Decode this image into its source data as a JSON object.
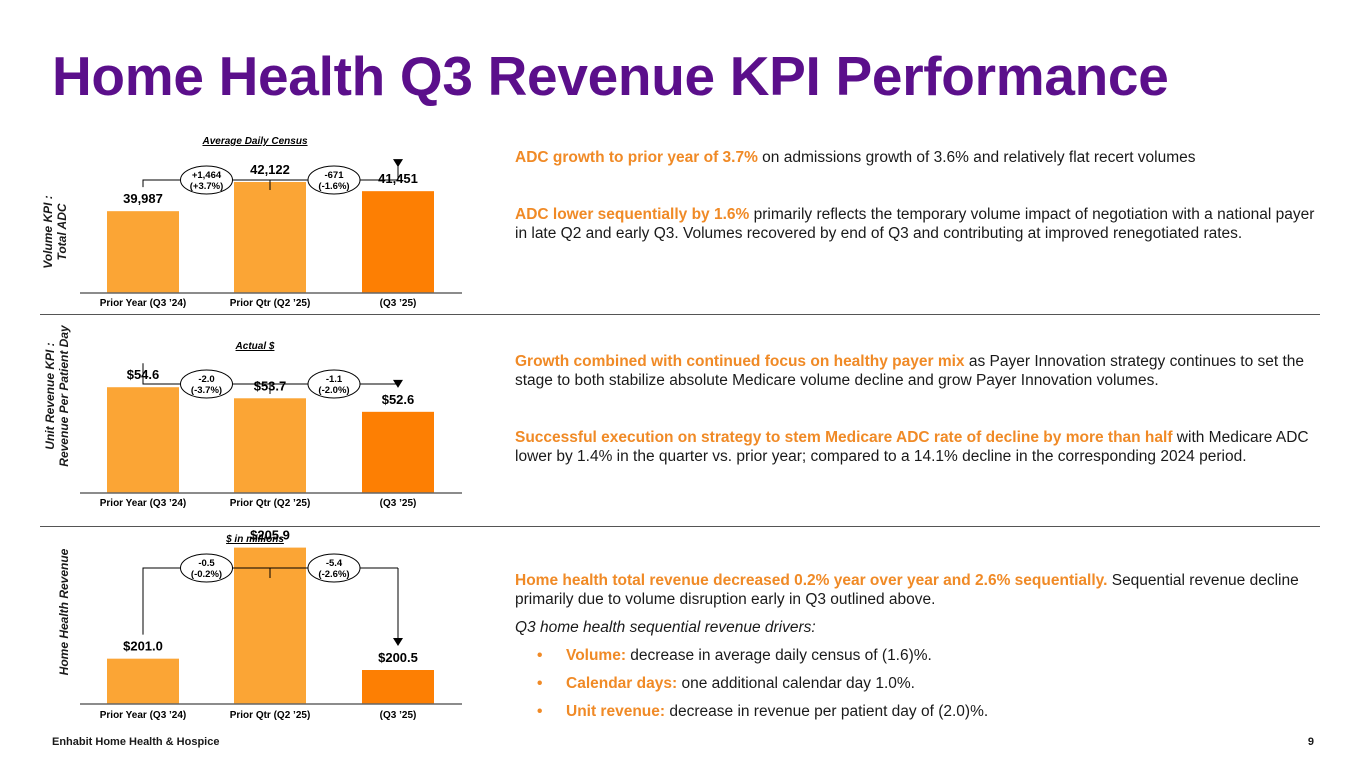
{
  "title": "Home Health Q3 Revenue KPI Performance",
  "colors": {
    "title": "#5b0f8b",
    "bar_light": "#fba535",
    "bar_dark": "#fd7f03",
    "highlight": "#f08a26"
  },
  "chart_data": [
    {
      "type": "bar",
      "title": "Average Daily Census",
      "ylabel_lines": [
        "Volume KPI :",
        "Total ADC"
      ],
      "categories": [
        "Prior Year (Q3 '24)",
        "Prior Qtr (Q2 '25)",
        "(Q3 '25)"
      ],
      "values": [
        39987,
        42122,
        41451
      ],
      "data_labels": [
        "39,987",
        "42,122",
        "41,451"
      ],
      "ylim": [
        34000,
        43000
      ],
      "deltas": [
        {
          "value": "+1,464",
          "pct": "(+3.7%)"
        },
        {
          "value": "-671",
          "pct": "(-1.6%)"
        }
      ]
    },
    {
      "type": "bar",
      "title": "Actual $",
      "ylabel_lines": [
        "Unit Revenue KPI :",
        "Revenue Per Patient Day"
      ],
      "categories": [
        "Prior Year (Q3 '24)",
        "Prior Qtr (Q2 '25)",
        "(Q3 '25)"
      ],
      "values": [
        54.6,
        53.7,
        52.6
      ],
      "data_labels": [
        "$54.6",
        "$53.7",
        "$52.6"
      ],
      "ylim": [
        46,
        56
      ],
      "deltas": [
        {
          "value": "-2.0",
          "pct": "(-3.7%)"
        },
        {
          "value": "-1.1",
          "pct": "(-2.0%)"
        }
      ]
    },
    {
      "type": "bar",
      "title": "$ in millions",
      "ylabel_lines": [
        "Home Health Revenue"
      ],
      "categories": [
        "Prior Year (Q3 '24)",
        "Prior Qtr (Q2 '25)",
        "(Q3 '25)"
      ],
      "values": [
        201.0,
        205.9,
        200.5
      ],
      "data_labels": [
        "$201.0",
        "$205.9",
        "$200.5"
      ],
      "ylim": [
        199,
        206.5
      ],
      "deltas": [
        {
          "value": "-0.5",
          "pct": "(-0.2%)"
        },
        {
          "value": "-5.4",
          "pct": "(-2.6%)"
        }
      ]
    }
  ],
  "commentary": {
    "p1": {
      "hl": "ADC growth to prior year of 3.7%",
      "rest": " on admissions growth of 3.6% and relatively flat recert volumes"
    },
    "p2": {
      "hl": "ADC lower sequentially by 1.6%",
      "rest": " primarily reflects the temporary volume impact of negotiation with a national payer in late Q2 and early Q3. Volumes recovered by end of Q3 and contributing at improved renegotiated rates."
    },
    "p3": {
      "hl": "Growth combined with continued focus on healthy payer mix",
      "rest": " as Payer Innovation strategy continues to set the stage to both stabilize absolute Medicare volume decline and grow Payer Innovation volumes."
    },
    "p4": {
      "hl": "Successful execution on strategy to stem Medicare ADC rate of decline by more than half",
      "rest": " with Medicare ADC lower by 1.4% in the quarter vs. prior year; compared to a 14.1% decline in the corresponding 2024 period."
    },
    "p5": {
      "hl": "Home health total revenue decreased 0.2% year over year and 2.6% sequentially.",
      "rest": " Sequential revenue decline primarily due to volume disruption early in Q3 outlined above."
    },
    "drivers_title": "Q3 home health sequential revenue drivers:",
    "bullet_char": "•",
    "bullets": [
      {
        "label": "Volume:",
        "text": " decrease in average daily census of (1.6)%."
      },
      {
        "label": "Calendar days:",
        "text": " one additional calendar day 1.0%."
      },
      {
        "label": "Unit revenue:",
        "text": " decrease in revenue per patient day of (2.0)%."
      }
    ]
  },
  "footer": "Enhabit Home Health & Hospice",
  "page_number": "9"
}
